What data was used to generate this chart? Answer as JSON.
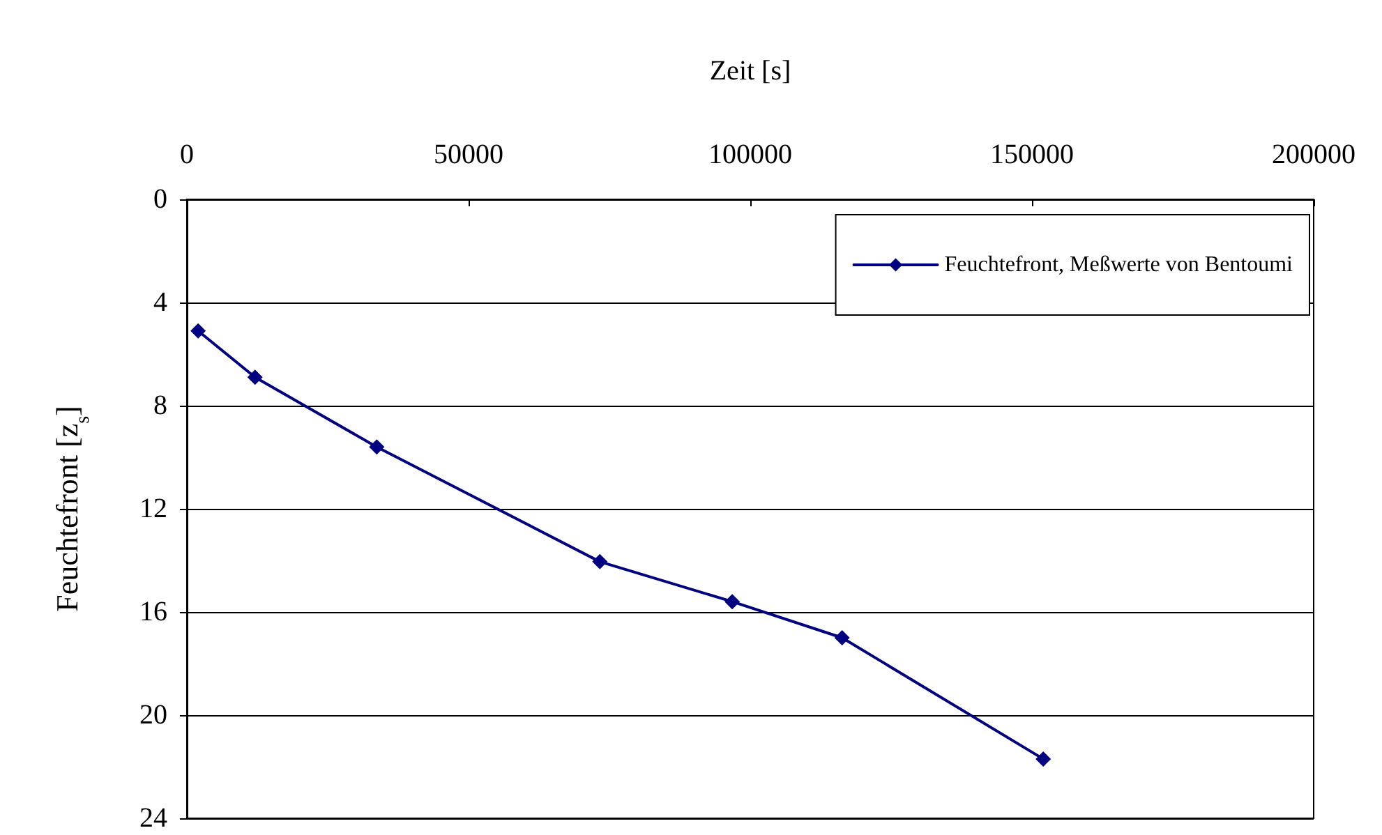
{
  "chart_data": {
    "type": "line",
    "xlabel": "Zeit [s]",
    "ylabel": "Feuchtefront [z$_{s}$]",
    "x": [
      2000,
      12100,
      33700,
      73300,
      96800,
      116300,
      152000
    ],
    "series": [
      {
        "name": "Feuchtefront, Meßwerte von Bentoumi",
        "color": "#000080",
        "values": [
          5.1,
          6.9,
          9.6,
          14.05,
          15.6,
          17.0,
          21.7
        ]
      }
    ],
    "xlim": [
      0,
      200000
    ],
    "xticks": [
      0,
      50000,
      100000,
      150000,
      200000
    ],
    "ylim": [
      24,
      0
    ],
    "yticks": [
      0,
      4,
      8,
      12,
      16,
      20,
      24
    ],
    "grid": "y",
    "legend": "top right",
    "marker": "diamond",
    "line_style": "solid"
  }
}
